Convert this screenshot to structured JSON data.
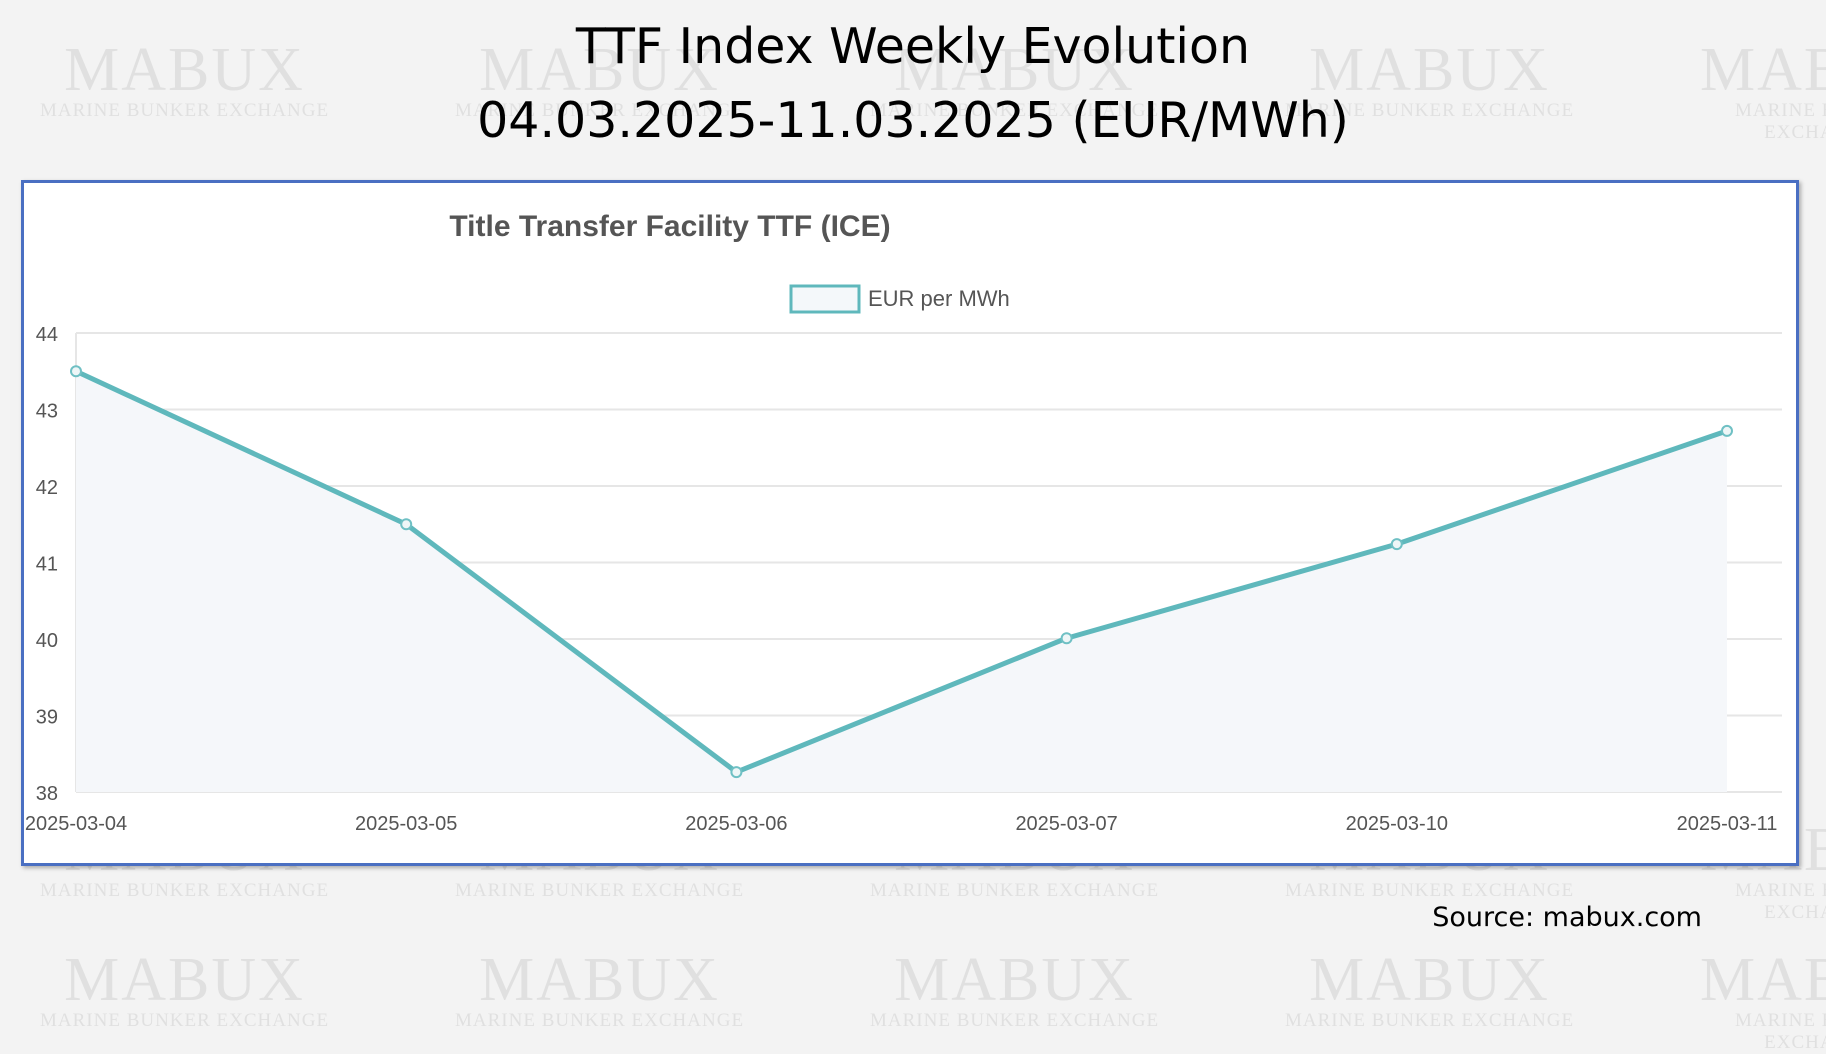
{
  "header": {
    "title_line1": "TTF Index Weekly Evolution",
    "title_line2": "04.03.2025-11.03.2025 (EUR/MWh)"
  },
  "watermark": {
    "big": "MABUX",
    "small": "MARINE BUNKER EXCHANGE"
  },
  "source": "Source: mabux.com",
  "chart_data": {
    "type": "line",
    "title": "Title Transfer Facility TTF (ICE)",
    "categories": [
      "2025-03-04",
      "2025-03-05",
      "2025-03-06",
      "2025-03-07",
      "2025-03-10",
      "2025-03-11"
    ],
    "series": [
      {
        "name": "EUR per MWh",
        "values": [
          43.5,
          41.5,
          38.26,
          40.01,
          41.24,
          42.72
        ],
        "color": "#5fb8bc"
      }
    ],
    "ylim": [
      38,
      44
    ],
    "yticks": [
      "44",
      "43",
      "42",
      "41",
      "40",
      "39",
      "38"
    ],
    "grid": true,
    "legend": "top-center",
    "fill": true
  }
}
